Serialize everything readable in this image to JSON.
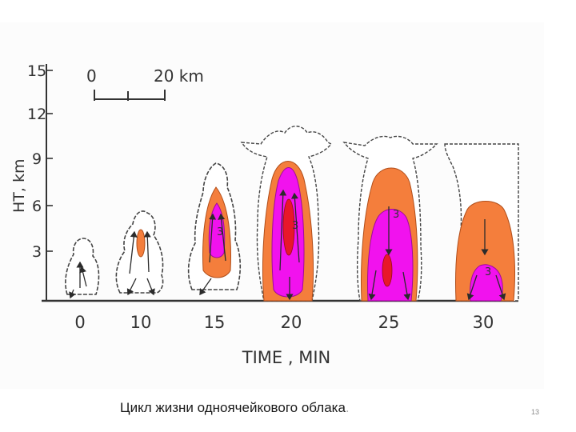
{
  "figure": {
    "y_axis_label": "HT, km",
    "y_ticks": [
      "15",
      "12",
      "9",
      "6",
      "3"
    ],
    "scale_bar": {
      "start": "0",
      "end": "20 km"
    },
    "x_axis_label": "TIME , MIN",
    "x_ticks": [
      "0",
      "10",
      "15",
      "20",
      "25",
      "30"
    ],
    "cell_labels": [
      "3",
      "3",
      "3",
      "3"
    ],
    "colors": {
      "cloud_outline": "#444444",
      "orange_zone": "#f47e3c",
      "magenta_zone": "#f112ee",
      "red_core": "#e8172a"
    }
  },
  "caption": "Цикл жизни одноячейкового облака",
  "caption_dot": ".",
  "page_number": "13"
}
